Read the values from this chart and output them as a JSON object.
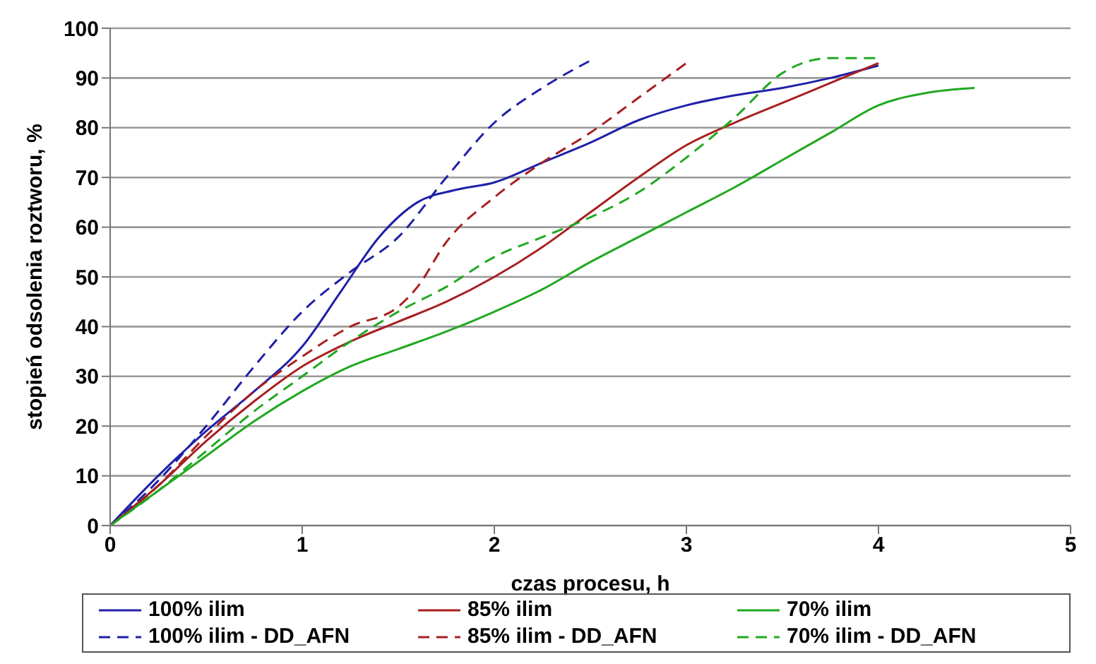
{
  "chart_data": {
    "type": "line",
    "xlabel": "czas procesu, h",
    "ylabel": "stopień odsolenia roztworu, %",
    "xlim": [
      0,
      5
    ],
    "xticks": [
      0,
      1,
      2,
      3,
      4,
      5
    ],
    "ylim": [
      0,
      100
    ],
    "yticks": [
      0,
      10,
      20,
      30,
      40,
      50,
      60,
      70,
      80,
      90,
      100
    ],
    "grid": "y",
    "legend": "bottom",
    "marker": "none",
    "series": [
      {
        "name": "100% ilim",
        "color": "#2020a8",
        "line_style": "solid",
        "x": [
          0,
          0.25,
          0.5,
          0.75,
          1,
          1.2,
          1.4,
          1.6,
          1.8,
          2,
          2.25,
          2.5,
          2.75,
          3,
          3.25,
          3.5,
          3.75,
          4
        ],
        "values": [
          0,
          10,
          19,
          27,
          36,
          47,
          58,
          65,
          67.5,
          69,
          73,
          77,
          81.5,
          84.5,
          86.5,
          88,
          90,
          92.5
        ]
      },
      {
        "name": "85% ilim",
        "color": "#a82020",
        "line_style": "solid",
        "x": [
          0,
          0.25,
          0.5,
          0.75,
          1,
          1.25,
          1.5,
          1.75,
          2,
          2.25,
          2.5,
          2.75,
          3,
          3.25,
          3.5,
          3.75,
          4
        ],
        "values": [
          0,
          8,
          17,
          25,
          32,
          37,
          41,
          45,
          50,
          56,
          63,
          70,
          76.5,
          81,
          85,
          89,
          93
        ]
      },
      {
        "name": "70% ilim",
        "color": "#20a820",
        "line_style": "solid",
        "x": [
          0,
          0.25,
          0.5,
          0.75,
          1,
          1.25,
          1.5,
          1.75,
          2,
          2.25,
          2.5,
          2.75,
          3,
          3.25,
          3.5,
          3.75,
          4,
          4.25,
          4.5
        ],
        "values": [
          0,
          7,
          14,
          21,
          27,
          32,
          35.5,
          39,
          43,
          47.5,
          53,
          58,
          63,
          68,
          73.5,
          79,
          84.5,
          87,
          88
        ]
      },
      {
        "name": "100% ilim - DD_AFN",
        "color": "#2020a8",
        "line_style": "dashed",
        "x": [
          0,
          0.25,
          0.5,
          0.75,
          1,
          1.25,
          1.5,
          1.75,
          2,
          2.25,
          2.5
        ],
        "values": [
          0,
          9,
          20,
          32,
          43,
          51,
          58,
          70,
          81,
          88,
          93.5
        ]
      },
      {
        "name": "85% ilim - DD_AFN",
        "color": "#a82020",
        "line_style": "dashed",
        "x": [
          0,
          0.25,
          0.5,
          0.75,
          1,
          1.25,
          1.5,
          1.6,
          1.75,
          2,
          2.25,
          2.5,
          2.75,
          3
        ],
        "values": [
          0,
          8,
          18,
          27,
          34,
          40,
          44,
          48,
          57,
          66,
          73,
          79,
          86,
          93
        ]
      },
      {
        "name": "70% ilim - DD_AFN",
        "color": "#20a820",
        "line_style": "dashed",
        "x": [
          0,
          0.25,
          0.5,
          0.75,
          1,
          1.25,
          1.5,
          1.75,
          2,
          2.25,
          2.5,
          2.75,
          3,
          3.25,
          3.5,
          3.75,
          4
        ],
        "values": [
          0,
          7,
          15,
          23,
          30,
          37,
          43,
          48,
          54,
          58,
          62,
          67,
          74,
          82,
          91,
          94,
          94
        ]
      }
    ]
  }
}
